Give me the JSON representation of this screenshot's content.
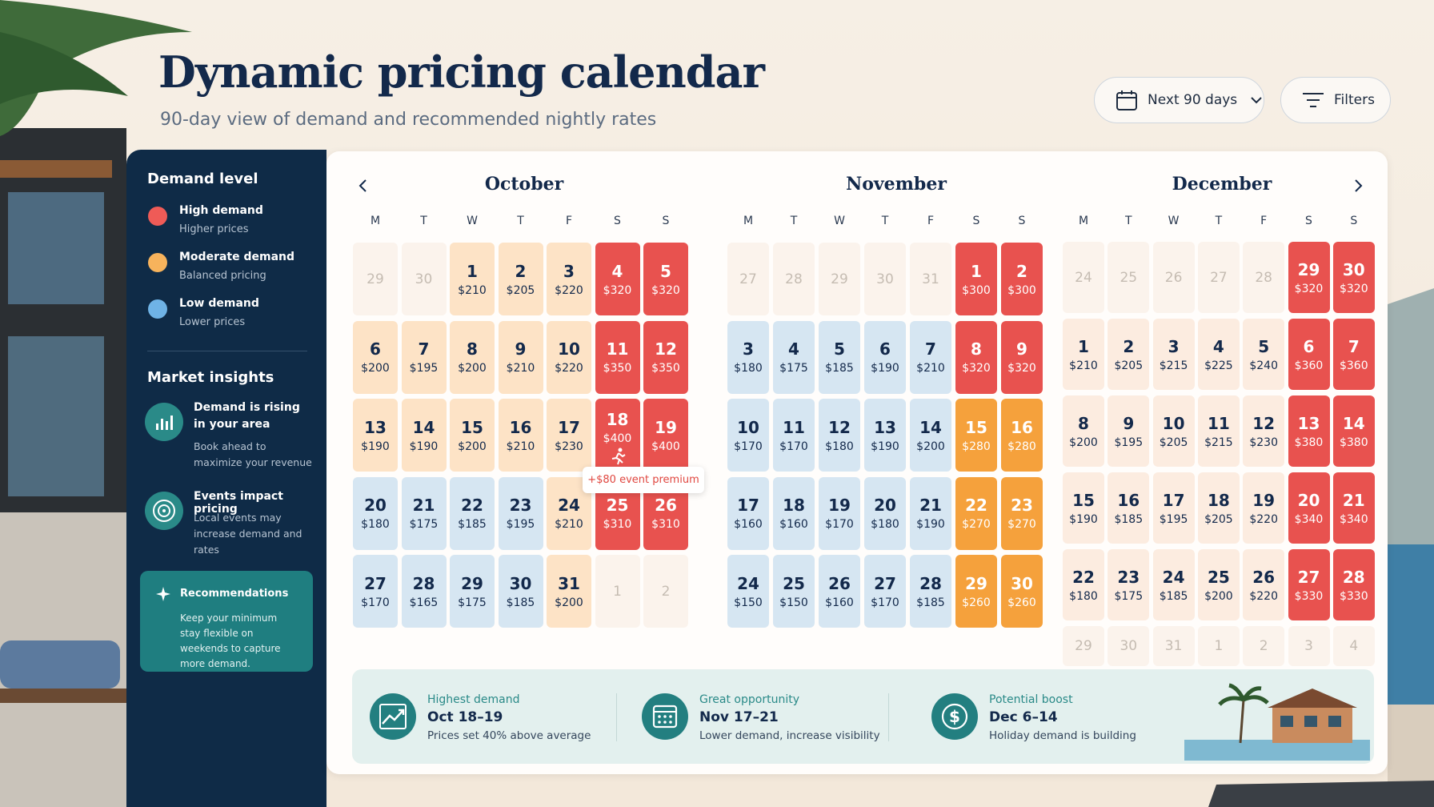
{
  "header": {
    "title": "Dynamic pricing calendar",
    "subtitle": "90-day view of demand and recommended nightly rates"
  },
  "controls": {
    "range": "Next 90 days",
    "filters": "Filters"
  },
  "sidebar": {
    "legend_title": "Demand level",
    "legend": [
      {
        "label": "High demand",
        "note": "Higher prices",
        "color": "#ef5b57"
      },
      {
        "label": "Moderate demand",
        "note": "Balanced pricing",
        "color": "#f7b35c"
      },
      {
        "label": "Low demand",
        "note": "Lower prices",
        "color": "#6fb3e6"
      }
    ],
    "insights_title": "Market insights",
    "insights": [
      {
        "title": "Demand is rising in your area",
        "text": "Book ahead to maximize your revenue"
      },
      {
        "title": "Events impact pricing",
        "text": "Local events may increase demand and rates"
      }
    ],
    "recommendation": {
      "title": "Recommendations",
      "text": "Keep your minimum stay flexible on weekends to capture more demand."
    }
  },
  "calendar": {
    "weekdays": [
      "M",
      "T",
      "W",
      "T",
      "F",
      "S",
      "S"
    ],
    "level_colors": {
      "high": "#e8524f",
      "orange": "#f5a13c",
      "peach": "#fde3c6",
      "blue": "#d6e6f2",
      "cream": "#fcece0",
      "out": "#fbf3ec"
    },
    "tooltip": "+$80 event premium",
    "months": [
      {
        "name": "October",
        "cells": [
          [
            29
          ],
          [
            30
          ],
          [
            1,
            "$210",
            "peach"
          ],
          [
            2,
            "$205",
            "peach"
          ],
          [
            3,
            "$220",
            "peach"
          ],
          [
            4,
            "$320",
            "high"
          ],
          [
            5,
            "$320",
            "high"
          ],
          [
            6,
            "$200",
            "peach"
          ],
          [
            7,
            "$195",
            "peach"
          ],
          [
            8,
            "$200",
            "peach"
          ],
          [
            9,
            "$210",
            "peach"
          ],
          [
            10,
            "$220",
            "peach"
          ],
          [
            11,
            "$350",
            "high"
          ],
          [
            12,
            "$350",
            "high"
          ],
          [
            13,
            "$190",
            "peach"
          ],
          [
            14,
            "$190",
            "peach"
          ],
          [
            15,
            "$200",
            "peach"
          ],
          [
            16,
            "$210",
            "peach"
          ],
          [
            17,
            "$230",
            "peach"
          ],
          [
            18,
            "$400",
            "high",
            "event"
          ],
          [
            19,
            "$400",
            "high"
          ],
          [
            20,
            "$180",
            "blue"
          ],
          [
            21,
            "$175",
            "blue"
          ],
          [
            22,
            "$185",
            "blue"
          ],
          [
            23,
            "$195",
            "blue"
          ],
          [
            24,
            "$210",
            "peach"
          ],
          [
            25,
            "$310",
            "high"
          ],
          [
            26,
            "$310",
            "high"
          ],
          [
            27,
            "$170",
            "blue"
          ],
          [
            28,
            "$165",
            "blue"
          ],
          [
            29,
            "$175",
            "blue"
          ],
          [
            30,
            "$185",
            "blue"
          ],
          [
            31,
            "$200",
            "peach"
          ],
          [
            1
          ],
          [
            2
          ]
        ]
      },
      {
        "name": "November",
        "cells": [
          [
            27
          ],
          [
            28
          ],
          [
            29
          ],
          [
            30
          ],
          [
            31
          ],
          [
            1,
            "$300",
            "high"
          ],
          [
            2,
            "$300",
            "high"
          ],
          [
            3,
            "$180",
            "blue"
          ],
          [
            4,
            "$175",
            "blue"
          ],
          [
            5,
            "$185",
            "blue"
          ],
          [
            6,
            "$190",
            "blue"
          ],
          [
            7,
            "$210",
            "blue"
          ],
          [
            8,
            "$320",
            "high"
          ],
          [
            9,
            "$320",
            "high"
          ],
          [
            10,
            "$170",
            "blue"
          ],
          [
            11,
            "$170",
            "blue"
          ],
          [
            12,
            "$180",
            "blue"
          ],
          [
            13,
            "$190",
            "blue"
          ],
          [
            14,
            "$200",
            "blue"
          ],
          [
            15,
            "$280",
            "orange"
          ],
          [
            16,
            "$280",
            "orange"
          ],
          [
            17,
            "$160",
            "blue"
          ],
          [
            18,
            "$160",
            "blue"
          ],
          [
            19,
            "$170",
            "blue"
          ],
          [
            20,
            "$180",
            "blue"
          ],
          [
            21,
            "$190",
            "blue"
          ],
          [
            22,
            "$270",
            "orange"
          ],
          [
            23,
            "$270",
            "orange"
          ],
          [
            24,
            "$150",
            "blue"
          ],
          [
            25,
            "$150",
            "blue"
          ],
          [
            26,
            "$160",
            "blue"
          ],
          [
            27,
            "$170",
            "blue"
          ],
          [
            28,
            "$185",
            "blue"
          ],
          [
            29,
            "$260",
            "orange"
          ],
          [
            30,
            "$260",
            "orange"
          ]
        ]
      },
      {
        "name": "December",
        "cells": [
          [
            24
          ],
          [
            25
          ],
          [
            26
          ],
          [
            27
          ],
          [
            28
          ],
          [
            29,
            "$320",
            "high"
          ],
          [
            30,
            "$320",
            "high"
          ],
          [
            1,
            "$210",
            "cream"
          ],
          [
            2,
            "$205",
            "cream"
          ],
          [
            3,
            "$215",
            "cream"
          ],
          [
            4,
            "$225",
            "cream"
          ],
          [
            5,
            "$240",
            "cream"
          ],
          [
            6,
            "$360",
            "high"
          ],
          [
            7,
            "$360",
            "high"
          ],
          [
            8,
            "$200",
            "cream"
          ],
          [
            9,
            "$195",
            "cream"
          ],
          [
            10,
            "$205",
            "cream"
          ],
          [
            11,
            "$215",
            "cream"
          ],
          [
            12,
            "$230",
            "cream"
          ],
          [
            13,
            "$380",
            "high"
          ],
          [
            14,
            "$380",
            "high"
          ],
          [
            15,
            "$190",
            "cream"
          ],
          [
            16,
            "$185",
            "cream"
          ],
          [
            17,
            "$195",
            "cream"
          ],
          [
            18,
            "$205",
            "cream"
          ],
          [
            19,
            "$220",
            "cream"
          ],
          [
            20,
            "$340",
            "high"
          ],
          [
            21,
            "$340",
            "high"
          ],
          [
            22,
            "$180",
            "cream"
          ],
          [
            23,
            "$175",
            "cream"
          ],
          [
            24,
            "$185",
            "cream"
          ],
          [
            25,
            "$200",
            "cream"
          ],
          [
            26,
            "$220",
            "cream"
          ],
          [
            27,
            "$330",
            "high"
          ],
          [
            28,
            "$330",
            "high"
          ],
          [
            29
          ],
          [
            30
          ],
          [
            31
          ],
          [
            1
          ],
          [
            2
          ],
          [
            3
          ],
          [
            4
          ]
        ]
      }
    ]
  },
  "summary": [
    {
      "label": "Highest demand",
      "title": "Oct 18–19",
      "text": "Prices set 40% above average"
    },
    {
      "label": "Great opportunity",
      "title": "Nov 17–21",
      "text": "Lower demand, increase visibility"
    },
    {
      "label": "Potential boost",
      "title": "Dec 6–14",
      "text": "Holiday demand is building"
    }
  ]
}
